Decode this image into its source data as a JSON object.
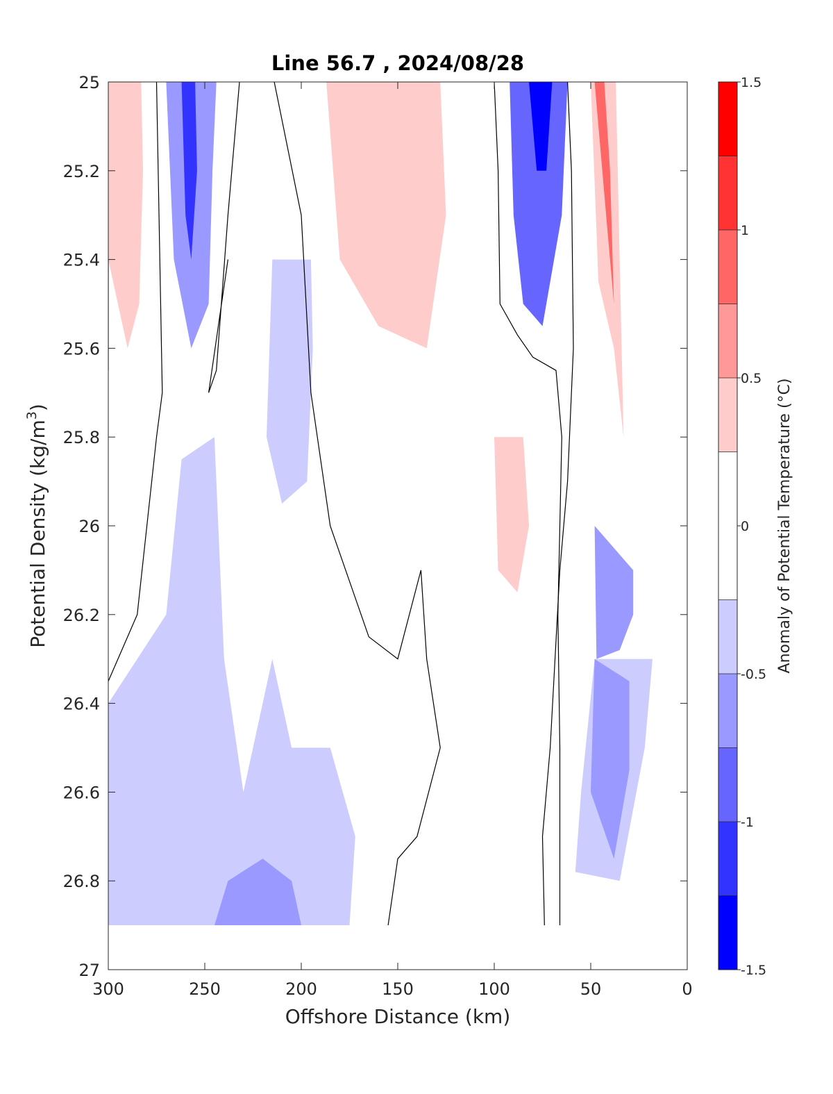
{
  "chart_data": {
    "type": "contourf",
    "title": "Line 56.7 , 2024/08/28",
    "xlabel": "Offshore Distance (km)",
    "ylabel_main": "Potential Density (kg/m",
    "ylabel_sup": "3",
    "ylabel_close": ")",
    "xlim": [
      300,
      0
    ],
    "ylim": [
      25,
      27
    ],
    "y_reversed": true,
    "x_ticks": [
      "300",
      "250",
      "200",
      "150",
      "100",
      "50",
      "0"
    ],
    "x_tick_values": [
      300,
      250,
      200,
      150,
      100,
      50,
      0
    ],
    "y_ticks": [
      "25",
      "25.2",
      "25.4",
      "25.6",
      "25.8",
      "26",
      "26.2",
      "26.4",
      "26.6",
      "26.8",
      "27"
    ],
    "y_tick_values": [
      25,
      25.2,
      25.4,
      25.6,
      25.8,
      26,
      26.2,
      26.4,
      26.6,
      26.8,
      27
    ],
    "colorbar": {
      "label": "Anomaly of Potential Temperature (°C)",
      "ticks": [
        "1.5",
        "1",
        "0.5",
        "0",
        "-0.5",
        "-1",
        "-1.5"
      ],
      "tick_values": [
        1.5,
        1,
        0.5,
        0,
        -0.5,
        -1,
        -1.5
      ],
      "levels": [
        -1.5,
        -1.25,
        -1,
        -0.75,
        -0.5,
        -0.25,
        0.25,
        0.5,
        0.75,
        1,
        1.25,
        1.5
      ],
      "colors": [
        "#0000ff",
        "#3333ff",
        "#6666ff",
        "#9999ff",
        "#ccccff",
        "#ffffff",
        "#ffcccc",
        "#ff9999",
        "#ff6666",
        "#ff3333",
        "#ff0000"
      ]
    },
    "data_limit_density": 26.9,
    "zero_contour_color": "#000000",
    "regions": [
      {
        "name": "warm-inshore-surface",
        "level": 0.5,
        "points": [
          [
            37,
            25
          ],
          [
            50,
            25
          ],
          [
            46,
            25.45
          ],
          [
            38,
            25.6
          ],
          [
            33,
            25.8
          ],
          [
            35,
            25.4
          ]
        ]
      },
      {
        "name": "warm-inshore-core",
        "level": 1.0,
        "points": [
          [
            43,
            25
          ],
          [
            48,
            25
          ],
          [
            42,
            25.3
          ],
          [
            38,
            25.5
          ],
          [
            40,
            25.2
          ]
        ]
      },
      {
        "name": "warm-far-surface",
        "level": 0.5,
        "points": [
          [
            283,
            25
          ],
          [
            300,
            25
          ],
          [
            300,
            25.4
          ],
          [
            290,
            25.6
          ],
          [
            284,
            25.5
          ],
          [
            282,
            25.2
          ]
        ]
      },
      {
        "name": "warm-offshore-band",
        "level": 0.25,
        "points": [
          [
            110,
            25
          ],
          [
            195,
            25
          ],
          [
            190,
            25.3
          ],
          [
            175,
            25.7
          ],
          [
            158,
            26.0
          ],
          [
            130,
            25.8
          ],
          [
            112,
            25.7
          ],
          [
            100,
            25.85
          ],
          [
            92,
            26.2
          ],
          [
            88,
            26.5
          ],
          [
            80,
            26.65
          ],
          [
            72,
            26.4
          ],
          [
            80,
            26.0
          ],
          [
            88,
            25.6
          ],
          [
            100,
            25.4
          ]
        ]
      },
      {
        "name": "warm-offshore-core",
        "level": 0.5,
        "points": [
          [
            128,
            25
          ],
          [
            187,
            25
          ],
          [
            180,
            25.4
          ],
          [
            160,
            25.55
          ],
          [
            135,
            25.6
          ],
          [
            125,
            25.3
          ]
        ]
      },
      {
        "name": "warm-mid-core",
        "level": 0.5,
        "points": [
          [
            85,
            25.8
          ],
          [
            100,
            25.8
          ],
          [
            98,
            26.1
          ],
          [
            88,
            26.15
          ],
          [
            82,
            26.0
          ]
        ]
      },
      {
        "name": "cold-inshore-surface",
        "level": -0.75,
        "points": [
          [
            62,
            25
          ],
          [
            92,
            25
          ],
          [
            90,
            25.3
          ],
          [
            85,
            25.5
          ],
          [
            75,
            25.55
          ],
          [
            65,
            25.3
          ]
        ]
      },
      {
        "name": "cold-inshore-core",
        "level": -1.25,
        "points": [
          [
            70,
            25
          ],
          [
            82,
            25
          ],
          [
            78,
            25.2
          ],
          [
            73,
            25.2
          ]
        ]
      },
      {
        "name": "cold-far-surface",
        "level": -0.5,
        "points": [
          [
            244,
            25
          ],
          [
            270,
            25
          ],
          [
            266,
            25.4
          ],
          [
            257,
            25.6
          ],
          [
            248,
            25.5
          ],
          [
            246,
            25.2
          ]
        ]
      },
      {
        "name": "cold-far-core",
        "level": -1.0,
        "points": [
          [
            255,
            25
          ],
          [
            262,
            25
          ],
          [
            260,
            25.3
          ],
          [
            257,
            25.4
          ],
          [
            254,
            25.2
          ]
        ]
      },
      {
        "name": "cold-mid-column",
        "level": -0.25,
        "points": [
          [
            195,
            25.4
          ],
          [
            215,
            25.4
          ],
          [
            218,
            25.8
          ],
          [
            210,
            25.95
          ],
          [
            197,
            25.9
          ],
          [
            194,
            25.6
          ]
        ]
      },
      {
        "name": "cold-deep-wide",
        "level": -0.25,
        "points": [
          [
            175,
            26.9
          ],
          [
            300,
            26.9
          ],
          [
            300,
            26.4
          ],
          [
            285,
            26.3
          ],
          [
            270,
            26.2
          ],
          [
            262,
            25.85
          ],
          [
            245,
            25.8
          ],
          [
            240,
            26.3
          ],
          [
            230,
            26.6
          ],
          [
            215,
            26.3
          ],
          [
            205,
            26.5
          ],
          [
            185,
            26.5
          ],
          [
            172,
            26.7
          ]
        ]
      },
      {
        "name": "cold-deep-core",
        "level": -0.5,
        "points": [
          [
            200,
            26.9
          ],
          [
            245,
            26.9
          ],
          [
            238,
            26.8
          ],
          [
            220,
            26.75
          ],
          [
            205,
            26.8
          ]
        ]
      },
      {
        "name": "cold-inshore-deep",
        "level": -0.25,
        "points": [
          [
            18,
            26.3
          ],
          [
            48,
            26.3
          ],
          [
            55,
            26.6
          ],
          [
            58,
            26.78
          ],
          [
            35,
            26.8
          ],
          [
            22,
            26.5
          ]
        ]
      },
      {
        "name": "cold-inshore-deep-core",
        "level": -0.5,
        "points": [
          [
            30,
            26.35
          ],
          [
            48,
            26.3
          ],
          [
            50,
            26.6
          ],
          [
            38,
            26.75
          ],
          [
            30,
            26.55
          ]
        ]
      },
      {
        "name": "cold-inshore-mid",
        "level": -0.5,
        "points": [
          [
            28,
            26.1
          ],
          [
            48,
            26.0
          ],
          [
            47,
            26.3
          ],
          [
            35,
            26.28
          ],
          [
            28,
            26.2
          ]
        ]
      }
    ],
    "zero_contours": [
      [
        [
          275,
          25
        ],
        [
          272,
          25.7
        ],
        [
          275,
          25.8
        ],
        [
          285,
          26.2
        ],
        [
          300,
          26.35
        ]
      ],
      [
        [
          232,
          25
        ],
        [
          238,
          25.3
        ],
        [
          244,
          25.65
        ],
        [
          248,
          25.7
        ],
        [
          238,
          25.4
        ]
      ],
      [
        [
          214,
          25
        ],
        [
          200,
          25.3
        ],
        [
          195,
          25.7
        ],
        [
          185,
          26.0
        ],
        [
          165,
          26.25
        ],
        [
          150,
          26.3
        ],
        [
          138,
          26.1
        ],
        [
          135,
          26.3
        ],
        [
          128,
          26.5
        ],
        [
          140,
          26.7
        ],
        [
          150,
          26.75
        ],
        [
          155,
          26.9
        ]
      ],
      [
        [
          62,
          25
        ],
        [
          60,
          25.2
        ],
        [
          59,
          25.6
        ],
        [
          62,
          25.9
        ],
        [
          66,
          26.1
        ],
        [
          71,
          26.5
        ],
        [
          75,
          26.7
        ],
        [
          74,
          26.9
        ]
      ],
      [
        [
          100,
          25
        ],
        [
          98,
          25.2
        ],
        [
          97,
          25.5
        ],
        [
          88,
          25.57
        ],
        [
          80,
          25.62
        ],
        [
          68,
          25.65
        ],
        [
          65,
          25.8
        ],
        [
          67,
          26.2
        ],
        [
          66,
          26.5
        ],
        [
          66,
          26.9
        ]
      ],
      [
        [
          300,
          25.4
        ],
        [
          300,
          25.65
        ]
      ]
    ]
  }
}
